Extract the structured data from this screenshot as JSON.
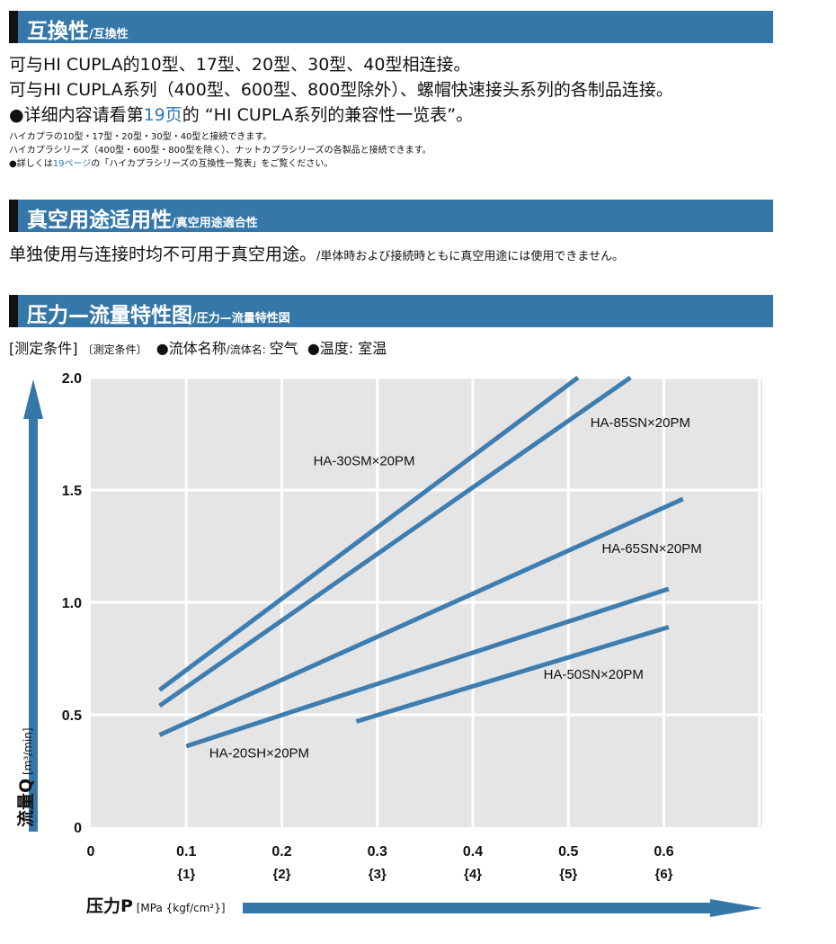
{
  "section1": {
    "title": "互換性",
    "subtitle": "/互換性",
    "lines": [
      "可与HI CUPLA的10型、17型、20型、30型、40型相连接。",
      "可与HI CUPLA系列（400型、600型、800型除外）、螺帽快速接头系列的各制品连接。"
    ],
    "line3_pre": "●详细内容请看第",
    "line3_page": "19页",
    "line3_post": "的 “HI CUPLA系列的兼容性一览表”。",
    "jp_lines": [
      "ハイカプラの10型・17型・20型・30型・40型と接続できます。",
      "ハイカプラシリーズ（400型・600型・800型を除く）、ナットカプラシリーズの各製品と接続できます。"
    ],
    "jp_line3_pre": "●詳しくは",
    "jp_line3_page": "19ページ",
    "jp_line3_post": "の「ハイカプラシリーズの互換性一覧表」をご覧ください。"
  },
  "section2": {
    "title": "真空用途适用性",
    "subtitle": "/真空用途適合性",
    "text": "单独使用与连接时均不可用于真空用途。",
    "text_jp": "/単体時および接続時ともに真空用途には使用できません。"
  },
  "section3": {
    "title": "压力—流量特性图",
    "subtitle": "/圧力—流量特性図",
    "cond_label": "[测定条件]",
    "cond_label_jp": "〔測定条件〕",
    "fluid": "●流体名称",
    "fluid_jp": "/流体名: ",
    "fluid_value": "空气",
    "temp": "●温度: ",
    "temp_value": "室温"
  },
  "axes": {
    "y_title": "流量Q",
    "y_unit": " [m³/min]",
    "x_title": "压力P",
    "x_unit": " [MPa {kgf/cm²}]"
  },
  "colors": {
    "accent": "#3577a8",
    "line": "#3d7db0",
    "plot_bg": "#e5e5e5",
    "grid": "#ffffff"
  },
  "chart_data": {
    "type": "line",
    "xlim": [
      0,
      0.7
    ],
    "ylim": [
      0,
      2.0
    ],
    "grid": true,
    "x_ticks": [
      {
        "v": 0,
        "label": "0",
        "sub": ""
      },
      {
        "v": 0.1,
        "label": "0.1",
        "sub": "{1}"
      },
      {
        "v": 0.2,
        "label": "0.2",
        "sub": "{2}"
      },
      {
        "v": 0.3,
        "label": "0.3",
        "sub": "{3}"
      },
      {
        "v": 0.4,
        "label": "0.4",
        "sub": "{4}"
      },
      {
        "v": 0.5,
        "label": "0.5",
        "sub": "{5}"
      },
      {
        "v": 0.6,
        "label": "0.6",
        "sub": "{6}"
      }
    ],
    "y_ticks": [
      {
        "v": 0,
        "label": "0"
      },
      {
        "v": 0.5,
        "label": "0.5"
      },
      {
        "v": 1.0,
        "label": "1.0"
      },
      {
        "v": 1.5,
        "label": "1.5"
      },
      {
        "v": 2.0,
        "label": "2.0"
      }
    ],
    "series": [
      {
        "name": "HA-30SM×20PM",
        "x": [
          0.072,
          0.51
        ],
        "y": [
          0.61,
          2.0
        ],
        "label_at": [
          0.233,
          1.61
        ]
      },
      {
        "name": "HA-85SN×20PM",
        "x": [
          0.072,
          0.565
        ],
        "y": [
          0.54,
          2.0
        ],
        "label_at": [
          0.523,
          1.78
        ]
      },
      {
        "name": "HA-65SN×20PM",
        "x": [
          0.072,
          0.62
        ],
        "y": [
          0.41,
          1.46
        ],
        "label_at": [
          0.535,
          1.22
        ]
      },
      {
        "name": "HA-20SH×20PM",
        "x": [
          0.1,
          0.605
        ],
        "y": [
          0.36,
          1.06
        ],
        "label_at": [
          0.124,
          0.31
        ]
      },
      {
        "name": "HA-50SN×20PM",
        "x": [
          0.278,
          0.605
        ],
        "y": [
          0.47,
          0.89
        ],
        "label_at": [
          0.474,
          0.66
        ]
      }
    ]
  }
}
